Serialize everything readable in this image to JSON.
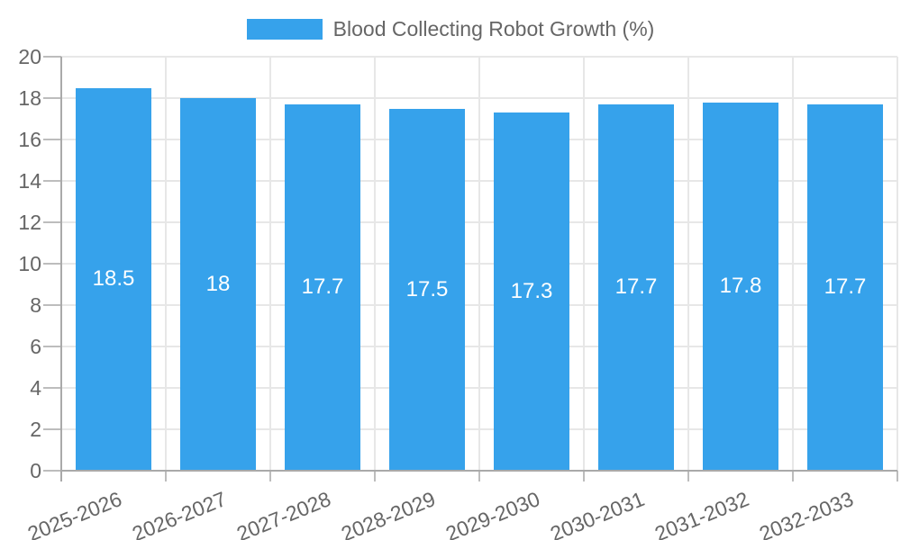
{
  "legend": {
    "label": "Blood Collecting Robot Growth (%)"
  },
  "chart_data": {
    "type": "bar",
    "title": "Blood Collecting Robot Growth (%)",
    "categories": [
      "2025-2026",
      "2026-2027",
      "2027-2028",
      "2028-2029",
      "2029-2030",
      "2030-2031",
      "2031-2032",
      "2032-2033"
    ],
    "values": [
      18.5,
      18,
      17.7,
      17.5,
      17.3,
      17.7,
      17.8,
      17.7
    ],
    "xlabel": "",
    "ylabel": "",
    "ylim": [
      0,
      20
    ],
    "ytick_step": 2,
    "yticks": [
      0,
      2,
      4,
      6,
      8,
      10,
      12,
      14,
      16,
      18,
      20
    ],
    "grid": true,
    "legend_position": "top",
    "x_label_rotation_deg": -22,
    "colors": {
      "bar": "#36a2eb",
      "value_label": "#ffffff",
      "axis_text": "#666666",
      "gridline": "#e7e7e7",
      "axis_line": "#a9a9a9",
      "tick_mark": "#bdbdbd",
      "background": "#ffffff"
    }
  }
}
